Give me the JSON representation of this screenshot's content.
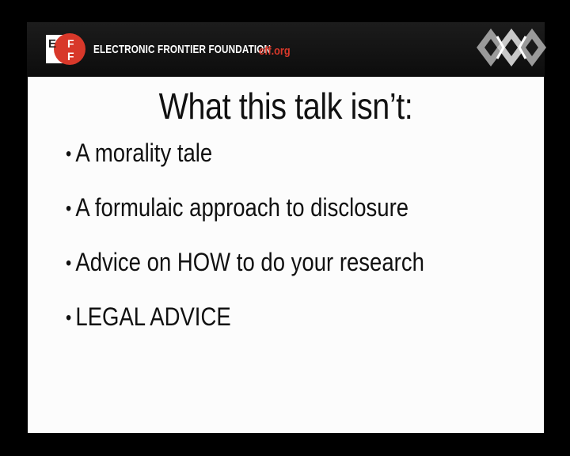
{
  "header": {
    "organization": "ELECTRONIC FRONTIER FOUNDATION",
    "url": "eff.org",
    "logo_letters": [
      "E",
      "F",
      "F"
    ],
    "logo_icon": "eff-logo-icon",
    "conference_logo_icon": "conference-logo-icon"
  },
  "slide": {
    "title": "What this talk isn’t:",
    "bullets": [
      {
        "marker": "•",
        "text": "A morality tale"
      },
      {
        "marker": "•",
        "text": "A formulaic approach to disclosure"
      },
      {
        "marker": "•",
        "text": "Advice on HOW to do your research"
      },
      {
        "marker": "•",
        "text": "LEGAL ADVICE"
      }
    ]
  },
  "colors": {
    "background": "#000000",
    "slide": "#fcfcfc",
    "eff_red": "#d8382a",
    "text": "#111111"
  }
}
